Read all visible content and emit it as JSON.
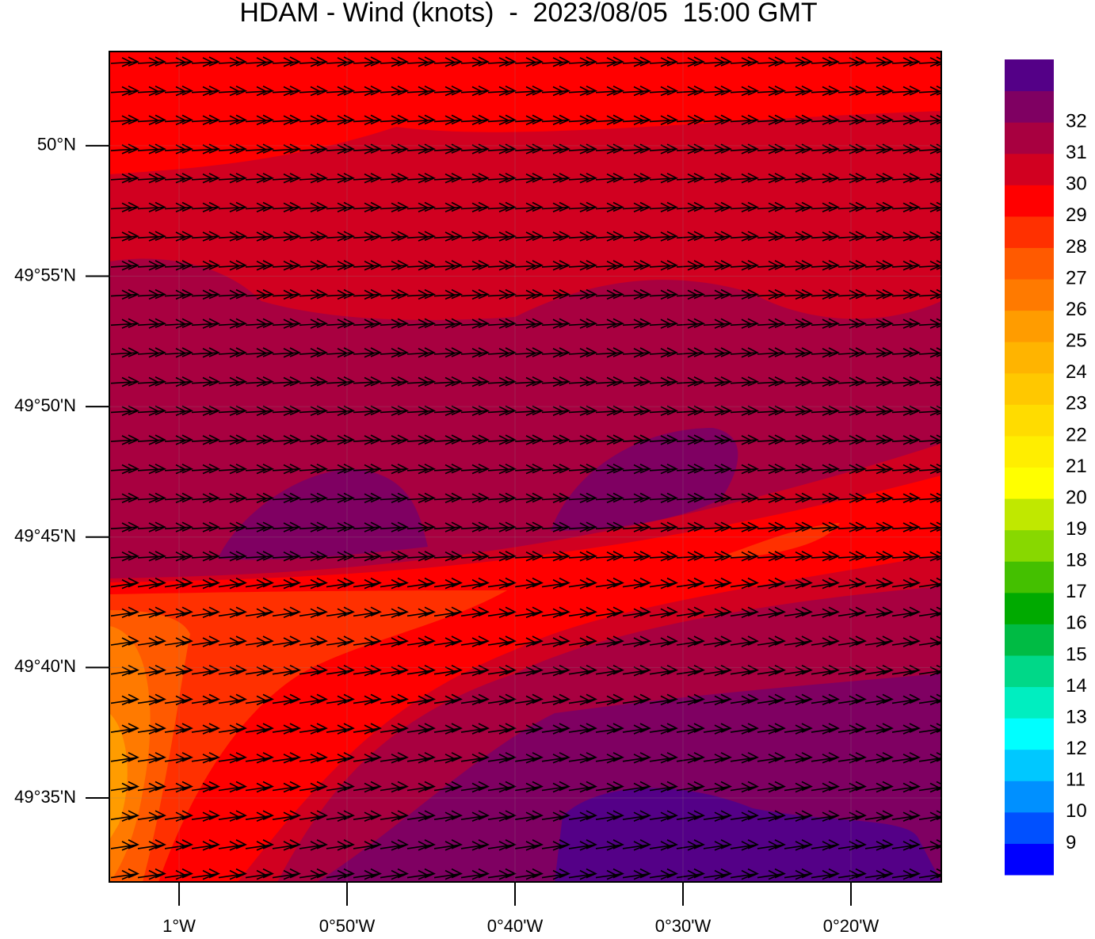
{
  "chart_data": {
    "type": "wind-map",
    "title": "HDAM - Wind (knots)  -  2023/08/05  15:00 GMT",
    "xlim": [
      -1.0692,
      -0.2437
    ],
    "ylim": [
      49.5297,
      50.0602
    ],
    "xticks": [
      {
        "value": -1,
        "label": "1°W"
      },
      {
        "value": -0.833333,
        "label": "0°50'W"
      },
      {
        "value": -0.666667,
        "label": "0°40'W"
      },
      {
        "value": -0.5,
        "label": "0°30'W"
      },
      {
        "value": -0.333333,
        "label": "0°20'W"
      }
    ],
    "yticks": [
      {
        "value": 49.583333,
        "label": "49°35'N"
      },
      {
        "value": 49.666667,
        "label": "49°40'N"
      },
      {
        "value": 49.75,
        "label": "49°45'N"
      },
      {
        "value": 49.833333,
        "label": "49°50'N"
      },
      {
        "value": 49.916667,
        "label": "49°55'N"
      },
      {
        "value": 50,
        "label": "50°N"
      }
    ],
    "colorbar": {
      "levels": [
        9,
        10,
        11,
        12,
        13,
        14,
        15,
        16,
        17,
        18,
        19,
        20,
        21,
        22,
        23,
        24,
        25,
        26,
        27,
        28,
        29,
        30,
        31,
        32
      ],
      "colors": [
        "#0000ff",
        "#0050ff",
        "#0090ff",
        "#00c8ff",
        "#00ffff",
        "#00eec0",
        "#00d888",
        "#00bb44",
        "#00aa00",
        "#44c000",
        "#88d800",
        "#c0e800",
        "#ffff00",
        "#ffee00",
        "#ffdc00",
        "#ffc800",
        "#ffb400",
        "#ff9c00",
        "#ff7a00",
        "#ff5a00",
        "#ff3000",
        "#ff0000",
        "#d10020",
        "#a80040",
        "#7f0062",
        "#540087"
      ]
    }
  }
}
